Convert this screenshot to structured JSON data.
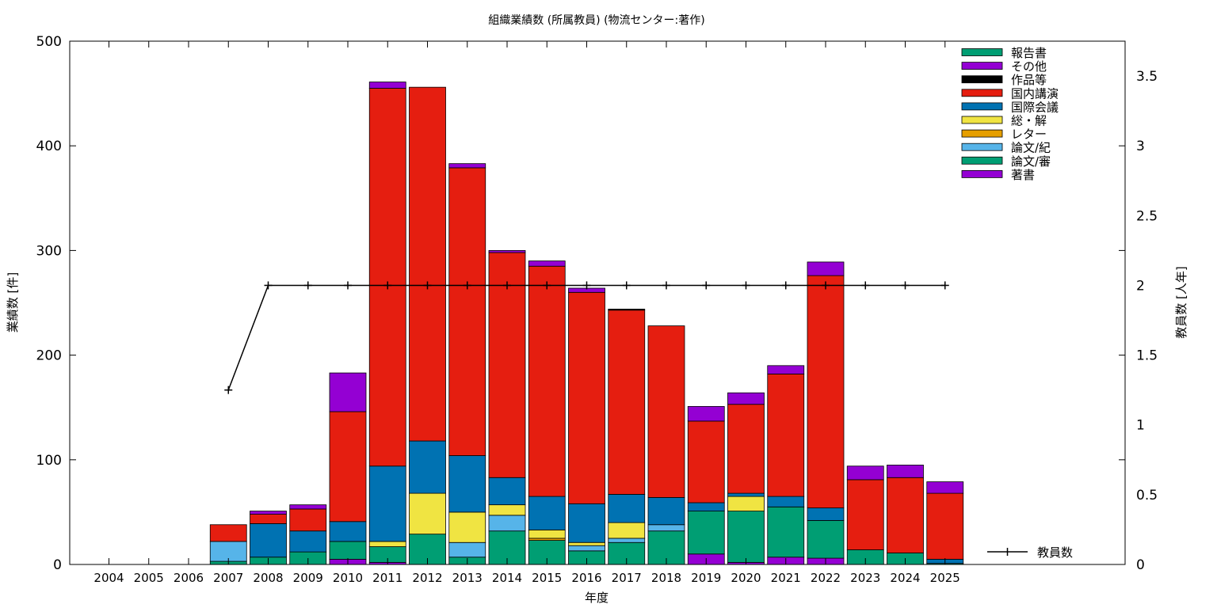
{
  "chart_data": {
    "type": "bar",
    "stacked": true,
    "title": "組織業績数 (所属教員) (物流センター:著作)",
    "xlabel": "年度",
    "ylabel": "業績数 [件]",
    "y2label": "教員数 [人年]",
    "ylim": [
      0,
      500
    ],
    "y2lim": [
      0,
      3.75
    ],
    "yticks": [
      0,
      100,
      200,
      300,
      400,
      500
    ],
    "y2ticks": [
      0,
      0.5,
      1,
      1.5,
      2,
      2.5,
      3,
      3.5
    ],
    "grid": false,
    "legend_position": "top-right",
    "categories": [
      "2004",
      "2005",
      "2006",
      "2007",
      "2008",
      "2009",
      "2010",
      "2011",
      "2012",
      "2013",
      "2014",
      "2015",
      "2016",
      "2017",
      "2018",
      "2019",
      "2020",
      "2021",
      "2022",
      "2023",
      "2024",
      "2025"
    ],
    "series": [
      {
        "name": "著書",
        "color": "#9400d3",
        "values": [
          0,
          0,
          0,
          0,
          0,
          0,
          5,
          2,
          0,
          0,
          0,
          0,
          0,
          0,
          0,
          10,
          2,
          7,
          6,
          0,
          0,
          0
        ]
      },
      {
        "name": "論文/審",
        "color": "#009e73",
        "values": [
          0,
          0,
          0,
          3,
          7,
          12,
          17,
          15,
          29,
          7,
          32,
          23,
          13,
          21,
          32,
          41,
          49,
          48,
          36,
          14,
          11,
          1
        ]
      },
      {
        "name": "論文/紀",
        "color": "#56b4e9",
        "values": [
          0,
          0,
          0,
          19,
          0,
          0,
          0,
          0,
          0,
          14,
          15,
          0,
          5,
          4,
          6,
          0,
          0,
          0,
          0,
          0,
          0,
          0
        ]
      },
      {
        "name": "レター",
        "color": "#e69f00",
        "values": [
          0,
          0,
          0,
          0,
          0,
          0,
          0,
          0,
          0,
          0,
          0,
          2,
          0,
          0,
          0,
          0,
          0,
          0,
          0,
          0,
          0,
          0
        ]
      },
      {
        "name": "総・解",
        "color": "#f0e442",
        "values": [
          0,
          0,
          0,
          0,
          0,
          0,
          0,
          5,
          39,
          29,
          10,
          8,
          3,
          15,
          0,
          0,
          14,
          0,
          0,
          0,
          0,
          0
        ]
      },
      {
        "name": "国際会議",
        "color": "#0072b2",
        "values": [
          0,
          0,
          0,
          0,
          32,
          20,
          19,
          72,
          50,
          54,
          26,
          32,
          37,
          27,
          26,
          8,
          3,
          10,
          12,
          0,
          0,
          4
        ]
      },
      {
        "name": "国内講演",
        "color": "#e51e10",
        "values": [
          0,
          0,
          0,
          16,
          9,
          21,
          105,
          361,
          338,
          275,
          215,
          220,
          202,
          176,
          164,
          78,
          85,
          117,
          222,
          67,
          72,
          63
        ]
      },
      {
        "name": "作品等",
        "color": "#000000",
        "values": [
          0,
          0,
          0,
          0,
          0,
          0,
          0,
          0,
          0,
          0,
          0,
          0,
          0,
          1,
          0,
          0,
          0,
          0,
          0,
          0,
          0,
          0
        ]
      },
      {
        "name": "その他",
        "color": "#9400d3",
        "values": [
          0,
          0,
          0,
          0,
          3,
          4,
          37,
          6,
          0,
          4,
          2,
          5,
          4,
          0,
          0,
          14,
          11,
          8,
          13,
          13,
          12,
          11
        ]
      },
      {
        "name": "報告書",
        "color": "#009e73",
        "values": [
          0,
          0,
          0,
          0,
          0,
          0,
          0,
          0,
          0,
          0,
          0,
          0,
          0,
          0,
          0,
          0,
          0,
          0,
          0,
          0,
          0,
          0
        ]
      }
    ],
    "legend_order": [
      "報告書",
      "その他",
      "作品等",
      "国内講演",
      "国際会議",
      "総・解",
      "レター",
      "論文/紀",
      "論文/審",
      "著書"
    ],
    "line_series": {
      "name": "教員数",
      "color": "#000000",
      "axis": "y2",
      "categories": [
        "2007",
        "2008",
        "2009",
        "2010",
        "2011",
        "2012",
        "2013",
        "2014",
        "2015",
        "2016",
        "2017",
        "2018",
        "2019",
        "2020",
        "2021",
        "2022",
        "2023",
        "2024",
        "2025"
      ],
      "values": [
        1.25,
        2,
        2,
        2,
        2,
        2,
        2,
        2,
        2,
        2,
        2,
        2,
        2,
        2,
        2,
        2,
        2,
        2,
        2
      ]
    }
  }
}
